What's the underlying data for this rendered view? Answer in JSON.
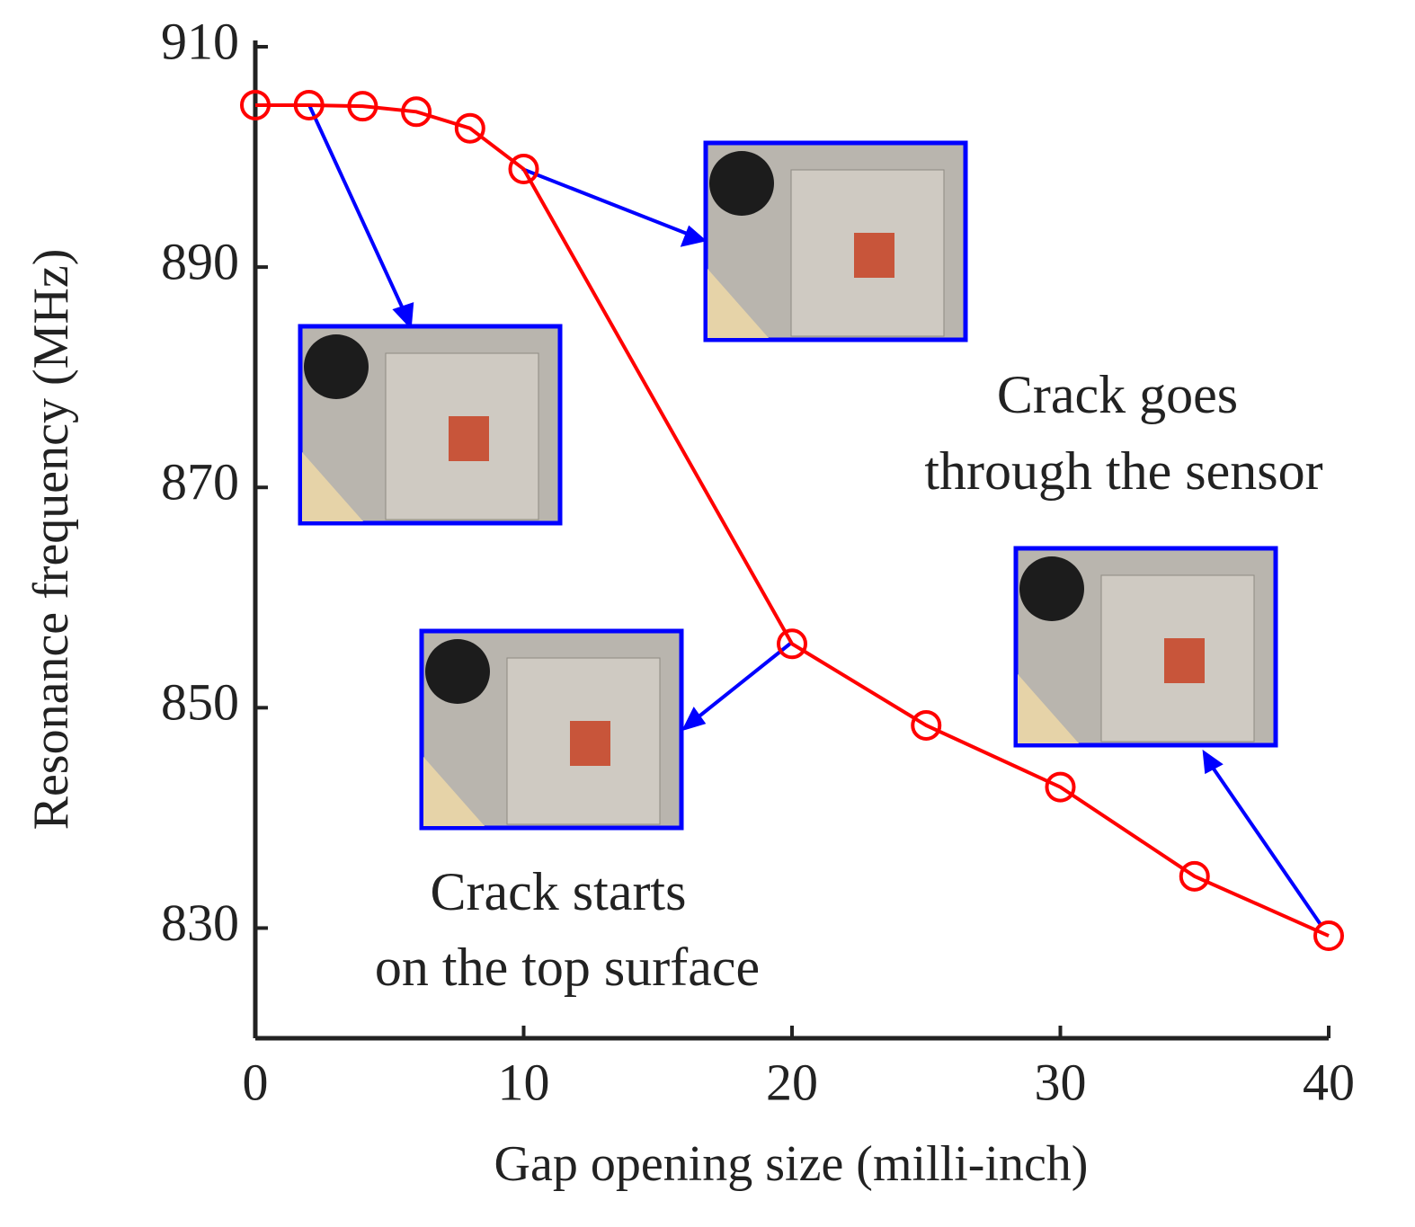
{
  "chart_data": {
    "type": "line",
    "x_label": "Gap opening size (milli-inch)",
    "y_label": "Resonance frequency (MHz)",
    "x": [
      0,
      2,
      4,
      6,
      8,
      10,
      20,
      25,
      30,
      35,
      40
    ],
    "series": [
      {
        "color": "#ff0000",
        "values": [
          904.7,
          904.7,
          904.6,
          904.1,
          902.6,
          898.9,
          855.8,
          848.4,
          842.8,
          834.7,
          829.3
        ]
      }
    ],
    "xlim": [
      0,
      40
    ],
    "xticks": [
      0,
      10,
      20,
      30,
      40
    ],
    "ylim": [
      820,
      910
    ],
    "yticks": [
      830,
      850,
      870,
      890,
      910
    ],
    "annotations": [
      {
        "lines": [
          "Crack goes",
          "through the sensor"
        ]
      },
      {
        "lines": [
          "Crack starts",
          "on the top surface"
        ]
      }
    ]
  }
}
